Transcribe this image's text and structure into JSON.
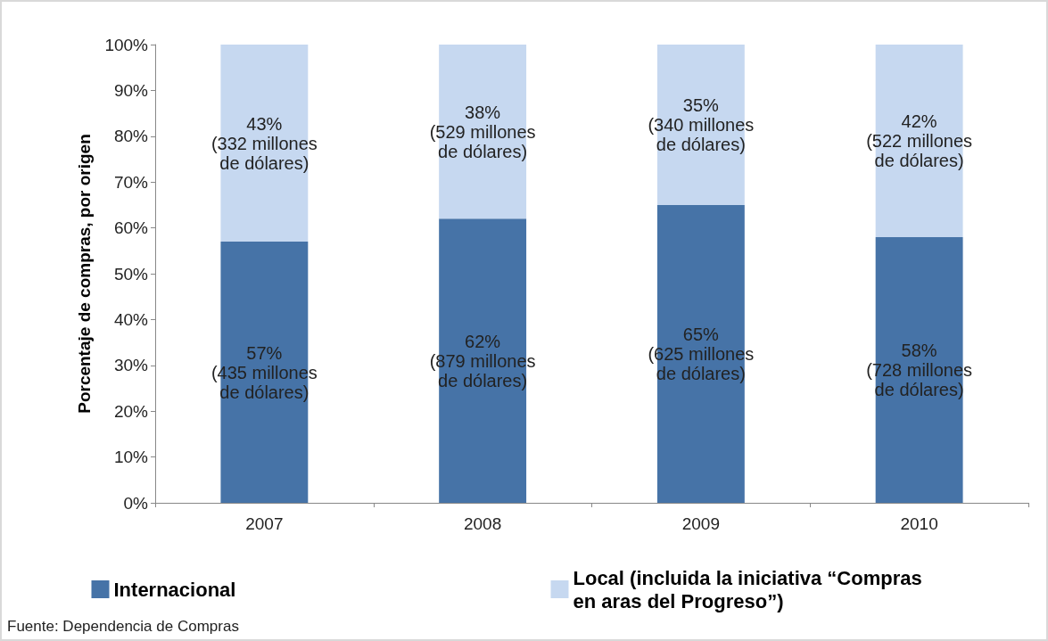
{
  "chart_data": {
    "type": "bar",
    "stacked": true,
    "ylabel": "Porcentaje de compras, por origen",
    "categories": [
      "2007",
      "2008",
      "2009",
      "2010"
    ],
    "series": [
      {
        "name": "Internacional",
        "color": "#4673a7",
        "values": [
          57,
          62,
          65,
          58
        ],
        "value_labels": [
          "57%\n(435 millones\nde dólares)",
          "62%\n(879 millones\nde dólares)",
          "65%\n(625 millones\nde dólares)",
          "58%\n(728 millones\nde dólares)"
        ]
      },
      {
        "name": "Local (incluida la iniciativa “Compras en aras del Progreso”)",
        "color": "#c6d8f0",
        "values": [
          43,
          38,
          35,
          42
        ],
        "value_labels": [
          "43%\n(332 millones\nde dólares)",
          "38%\n(529 millones\nde dólares)",
          "35%\n(340 millones\nde dólares)",
          "42%\n(522 millones\nde dólares)"
        ]
      }
    ],
    "ylim": [
      0,
      100
    ],
    "yticks": [
      {
        "value": 0,
        "label": "0%"
      },
      {
        "value": 10,
        "label": "10%"
      },
      {
        "value": 20,
        "label": "20%"
      },
      {
        "value": 30,
        "label": "30%"
      },
      {
        "value": 40,
        "label": "40%"
      },
      {
        "value": 50,
        "label": "50%"
      },
      {
        "value": 60,
        "label": "60%"
      },
      {
        "value": 70,
        "label": "70%"
      },
      {
        "value": 80,
        "label": "80%"
      },
      {
        "value": 90,
        "label": "90%"
      },
      {
        "value": 100,
        "label": "100%"
      }
    ],
    "grid": false,
    "legend": "bottom",
    "annotations": [
      "Fuente: Dependencia de Compras"
    ]
  }
}
